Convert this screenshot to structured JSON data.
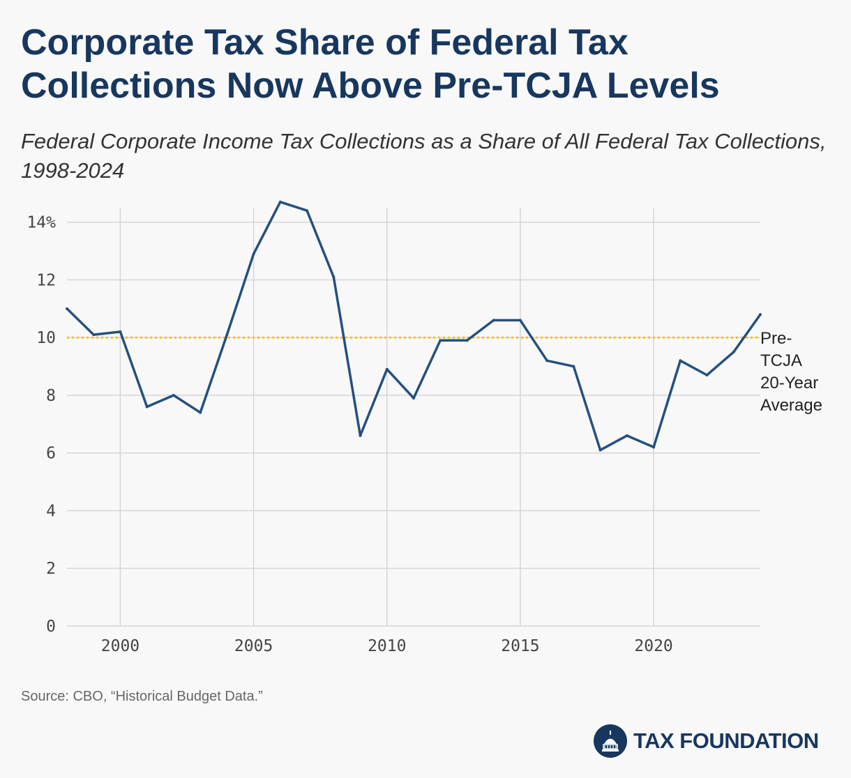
{
  "header": {
    "title": "Corporate Tax Share of Federal Tax Collections Now Above Pre-TCJA Levels",
    "subtitle": "Federal Corporate Income Tax Collections as a Share of All Federal Tax Collections, 1998-2024"
  },
  "chart_data": {
    "type": "line",
    "title": "Corporate Tax Share of Federal Tax Collections Now Above Pre-TCJA Levels",
    "subtitle": "Federal Corporate Income Tax Collections as a Share of All Federal Tax Collections, 1998-2024",
    "xlabel": "",
    "ylabel": "",
    "xlim": [
      1998,
      2024
    ],
    "ylim": [
      0,
      14.5
    ],
    "x_ticks": [
      2000,
      2005,
      2010,
      2015,
      2020
    ],
    "x_tick_labels": [
      "2000",
      "2005",
      "2010",
      "2015",
      "2020"
    ],
    "y_ticks": [
      0,
      2,
      4,
      6,
      8,
      10,
      12,
      14
    ],
    "y_tick_labels": [
      "0",
      "2",
      "4",
      "6",
      "8",
      "10",
      "12",
      "14%"
    ],
    "grid": true,
    "series": [
      {
        "color": "#24507e",
        "x": [
          1998,
          1999,
          2000,
          2001,
          2002,
          2003,
          2004,
          2005,
          2006,
          2007,
          2008,
          2009,
          2010,
          2011,
          2012,
          2013,
          2014,
          2015,
          2016,
          2017,
          2018,
          2019,
          2020,
          2021,
          2022,
          2023,
          2024
        ],
        "values": [
          11.0,
          10.1,
          10.2,
          7.6,
          8.0,
          7.4,
          10.1,
          12.9,
          14.7,
          14.4,
          12.1,
          6.6,
          8.9,
          7.9,
          9.9,
          9.9,
          10.6,
          10.6,
          9.2,
          9.0,
          6.1,
          6.6,
          6.2,
          9.2,
          8.7,
          9.5,
          10.8
        ]
      }
    ],
    "reference_line": {
      "value": 10.0,
      "color": "#f2c218",
      "label_lines": [
        "Pre-",
        "TCJA",
        "20-Year",
        "Average"
      ]
    }
  },
  "footer": {
    "source": "Source: CBO, “Historical Budget Data.”",
    "brand": "TAX FOUNDATION",
    "logo_icon": "capitol-dome-icon",
    "brand_color": "#17375e"
  }
}
